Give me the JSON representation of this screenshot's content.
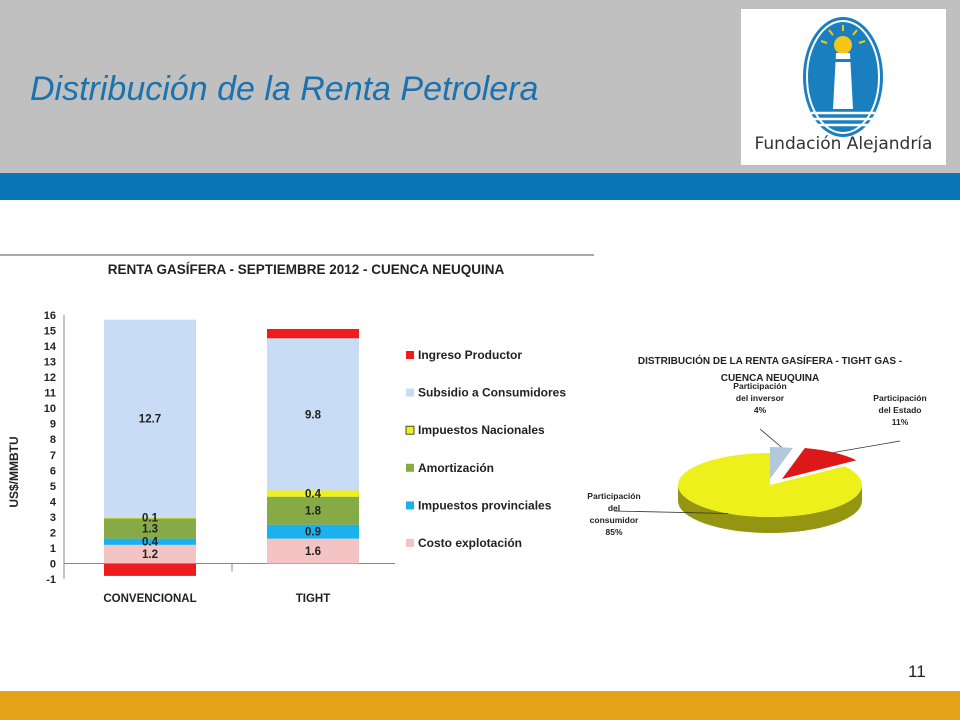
{
  "slide": {
    "title": "Distribución de la Renta Petrolera",
    "logo_text": "Fundación Alejandría",
    "page_number": "11"
  },
  "colors": {
    "header_gray": "#c0c0c0",
    "band_blue": "#0b76b5",
    "footer_gold": "#e4a41a",
    "title_blue": "#1a72b0"
  },
  "chart_data": [
    {
      "type": "bar",
      "stacked": true,
      "title": "RENTA GASÍFERA  - SEPTIEMBRE 2012 - CUENCA NEUQUINA",
      "ylabel": "US$/MMBTU",
      "ylim": [
        -1,
        16
      ],
      "yticks": [
        "-1",
        "0",
        "1",
        "2",
        "3",
        "4",
        "5",
        "6",
        "7",
        "8",
        "9",
        "10",
        "11",
        "12",
        "13",
        "14",
        "15",
        "16"
      ],
      "categories": [
        "CONVENCIONAL",
        "TIGHT"
      ],
      "legend_position": "right",
      "series": [
        {
          "name": "Costo explotación",
          "color": "#f4c4c4",
          "values": [
            1.2,
            1.6
          ],
          "labels": [
            "1.2",
            "1.6"
          ]
        },
        {
          "name": "Impuestos provinciales",
          "color": "#1ab2ee",
          "values": [
            0.4,
            0.9
          ],
          "labels": [
            "0.4",
            "0.9"
          ]
        },
        {
          "name": "Amortización",
          "color": "#86aa46",
          "values": [
            1.3,
            1.8
          ],
          "labels": [
            "1.3",
            "1.8"
          ]
        },
        {
          "name": "Impuestos Nacionales",
          "color": "#eef01c",
          "values": [
            0.1,
            0.4
          ],
          "labels": [
            "0.1",
            "0.4"
          ]
        },
        {
          "name": "Subsidio a Consumidores",
          "color": "#c8dcf5",
          "values": [
            12.7,
            9.8
          ],
          "labels": [
            "12.7",
            "9.8"
          ]
        },
        {
          "name": "Ingreso Productor",
          "color": "#ee1c1c",
          "values": [
            -0.8,
            0.6
          ],
          "labels": [
            "",
            ""
          ]
        }
      ]
    },
    {
      "type": "pie",
      "title_lines": [
        "DISTRIBUCIÓN DE LA RENTA GASÍFERA - TIGHT GAS -",
        "CUENCA NEUQUINA"
      ],
      "slices": [
        {
          "label_lines": [
            "Participación",
            "del inversor",
            "4%"
          ],
          "value": 4,
          "color": "#b4c8dc"
        },
        {
          "label_lines": [
            "Participación",
            "del Estado",
            "11%"
          ],
          "value": 11,
          "color": "#dd1818"
        },
        {
          "label_lines": [
            "Participación",
            "del",
            "consumidor",
            "85%"
          ],
          "value": 85,
          "color": "#eef01c"
        }
      ]
    }
  ]
}
